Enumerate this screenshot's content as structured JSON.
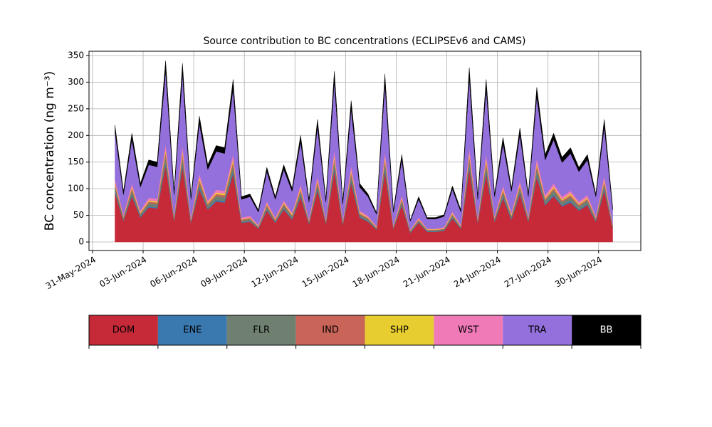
{
  "chart_data": {
    "type": "stacked_area",
    "title": "Source contribution to BC concentrations (ECLIPSEv6 and CAMS)",
    "ylabel": "BC concentration (ng m⁻³)",
    "x": [
      "2024-06-01T08:00",
      "2024-06-01T20:00",
      "2024-06-02T08:00",
      "2024-06-02T20:00",
      "2024-06-03T08:00",
      "2024-06-03T20:00",
      "2024-06-04T08:00",
      "2024-06-04T20:00",
      "2024-06-05T08:00",
      "2024-06-05T20:00",
      "2024-06-06T08:00",
      "2024-06-06T20:00",
      "2024-06-07T08:00",
      "2024-06-07T20:00",
      "2024-06-08T08:00",
      "2024-06-08T20:00",
      "2024-06-09T08:00",
      "2024-06-09T20:00",
      "2024-06-10T08:00",
      "2024-06-10T20:00",
      "2024-06-11T08:00",
      "2024-06-11T20:00",
      "2024-06-12T08:00",
      "2024-06-12T20:00",
      "2024-06-13T08:00",
      "2024-06-13T20:00",
      "2024-06-14T08:00",
      "2024-06-14T20:00",
      "2024-06-15T08:00",
      "2024-06-15T20:00",
      "2024-06-16T08:00",
      "2024-06-16T20:00",
      "2024-06-17T08:00",
      "2024-06-17T20:00",
      "2024-06-18T08:00",
      "2024-06-18T20:00",
      "2024-06-19T08:00",
      "2024-06-19T20:00",
      "2024-06-20T08:00",
      "2024-06-20T20:00",
      "2024-06-21T08:00",
      "2024-06-21T20:00",
      "2024-06-22T08:00",
      "2024-06-22T20:00",
      "2024-06-23T08:00",
      "2024-06-23T20:00",
      "2024-06-24T08:00",
      "2024-06-24T20:00",
      "2024-06-25T08:00",
      "2024-06-25T20:00",
      "2024-06-26T08:00",
      "2024-06-26T20:00",
      "2024-06-27T08:00",
      "2024-06-27T20:00",
      "2024-06-28T08:00",
      "2024-06-28T20:00",
      "2024-06-29T08:00",
      "2024-06-29T20:00",
      "2024-06-30T08:00",
      "2024-06-30T20:00"
    ],
    "series": [
      {
        "name": "DOM",
        "color": "#c62a38",
        "values": [
          92,
          40,
          86,
          46,
          65,
          63,
          143,
          40,
          141,
          36,
          99,
          61,
          76,
          74,
          128,
          36,
          38,
          25,
          59,
          36,
          61,
          42,
          84,
          34,
          97,
          34,
          134,
          32,
          111,
          46,
          38,
          23,
          132,
          25,
          69,
          17,
          36,
          19,
          19,
          21,
          44,
          25,
          137,
          36,
          128,
          38,
          82,
          42,
          90,
          38,
          122,
          69,
          86,
          67,
          74,
          59,
          69,
          38,
          97,
          27
        ]
      },
      {
        "name": "ENE",
        "color": "#3a78b0",
        "values": [
          3,
          1,
          3,
          2,
          2,
          2,
          5,
          1,
          5,
          1,
          4,
          2,
          3,
          3,
          5,
          1,
          1,
          1,
          2,
          1,
          2,
          2,
          3,
          1,
          3,
          1,
          5,
          1,
          4,
          2,
          1,
          1,
          5,
          1,
          2,
          1,
          1,
          1,
          1,
          1,
          2,
          1,
          5,
          1,
          5,
          1,
          3,
          2,
          3,
          1,
          4,
          2,
          3,
          2,
          3,
          2,
          2,
          1,
          3,
          1
        ]
      },
      {
        "name": "FLR",
        "color": "#6f8070",
        "values": [
          9,
          4,
          8,
          4,
          6,
          6,
          14,
          4,
          13,
          3,
          9,
          6,
          7,
          7,
          12,
          3,
          4,
          2,
          6,
          3,
          6,
          4,
          8,
          3,
          9,
          3,
          13,
          3,
          11,
          4,
          4,
          2,
          13,
          2,
          7,
          2,
          3,
          2,
          2,
          2,
          4,
          2,
          13,
          3,
          12,
          4,
          8,
          4,
          9,
          4,
          12,
          7,
          8,
          6,
          7,
          6,
          7,
          4,
          9,
          3
        ]
      },
      {
        "name": "IND",
        "color": "#c86458",
        "values": [
          4,
          2,
          4,
          2,
          3,
          3,
          7,
          2,
          7,
          2,
          5,
          3,
          4,
          4,
          6,
          2,
          2,
          1,
          3,
          2,
          3,
          2,
          4,
          2,
          5,
          2,
          6,
          2,
          5,
          2,
          2,
          1,
          6,
          1,
          3,
          1,
          2,
          1,
          1,
          1,
          2,
          1,
          7,
          2,
          6,
          2,
          4,
          2,
          4,
          2,
          6,
          3,
          4,
          3,
          4,
          3,
          3,
          2,
          5,
          1
        ]
      },
      {
        "name": "SHP",
        "color": "#e8cd30",
        "values": [
          3,
          1,
          3,
          2,
          2,
          2,
          5,
          1,
          5,
          1,
          4,
          2,
          3,
          3,
          5,
          1,
          1,
          1,
          2,
          1,
          2,
          2,
          3,
          1,
          3,
          1,
          5,
          1,
          4,
          2,
          1,
          1,
          5,
          1,
          2,
          1,
          1,
          1,
          1,
          1,
          2,
          1,
          5,
          1,
          5,
          1,
          3,
          2,
          3,
          1,
          4,
          2,
          3,
          2,
          3,
          2,
          2,
          1,
          3,
          1
        ]
      },
      {
        "name": "WST",
        "color": "#f07ab8",
        "values": [
          7,
          3,
          6,
          3,
          5,
          5,
          10,
          3,
          10,
          3,
          7,
          4,
          5,
          5,
          9,
          3,
          3,
          2,
          4,
          3,
          4,
          3,
          6,
          2,
          7,
          2,
          10,
          2,
          8,
          3,
          3,
          2,
          9,
          2,
          5,
          1,
          3,
          1,
          1,
          2,
          3,
          2,
          10,
          3,
          9,
          3,
          6,
          3,
          6,
          3,
          9,
          5,
          6,
          5,
          5,
          4,
          5,
          3,
          7,
          2
        ]
      },
      {
        "name": "TRA",
        "color": "#9370db",
        "values": [
          88,
          38,
          82,
          44,
          62,
          60,
          136,
          38,
          134,
          34,
          94,
          58,
          72,
          70,
          122,
          34,
          36,
          24,
          56,
          34,
          58,
          40,
          80,
          32,
          92,
          32,
          128,
          30,
          106,
          44,
          36,
          22,
          126,
          24,
          66,
          16,
          34,
          18,
          18,
          20,
          42,
          24,
          130,
          34,
          122,
          36,
          78,
          40,
          86,
          36,
          116,
          66,
          82,
          64,
          70,
          56,
          66,
          36,
          92,
          26
        ]
      },
      {
        "name": "BB",
        "color": "#000000",
        "values": [
          13,
          6,
          12,
          7,
          9,
          9,
          20,
          6,
          20,
          5,
          14,
          9,
          11,
          11,
          18,
          5,
          5,
          4,
          8,
          5,
          9,
          6,
          12,
          5,
          14,
          5,
          19,
          5,
          16,
          7,
          5,
          3,
          19,
          4,
          10,
          2,
          5,
          3,
          3,
          3,
          6,
          4,
          20,
          5,
          18,
          5,
          12,
          6,
          13,
          5,
          17,
          10,
          12,
          10,
          11,
          8,
          10,
          5,
          14,
          4
        ]
      }
    ],
    "xlim": [
      "2024-05-30T19:00",
      "2024-07-02T12:00"
    ],
    "xticks": [
      {
        "value": "2024-05-31T00:00",
        "label": "31-May-2024"
      },
      {
        "value": "2024-06-03T00:00",
        "label": "03-Jun-2024"
      },
      {
        "value": "2024-06-06T00:00",
        "label": "06-Jun-2024"
      },
      {
        "value": "2024-06-09T00:00",
        "label": "09-Jun-2024"
      },
      {
        "value": "2024-06-12T00:00",
        "label": "12-Jun-2024"
      },
      {
        "value": "2024-06-15T00:00",
        "label": "15-Jun-2024"
      },
      {
        "value": "2024-06-18T00:00",
        "label": "18-Jun-2024"
      },
      {
        "value": "2024-06-21T00:00",
        "label": "21-Jun-2024"
      },
      {
        "value": "2024-06-24T00:00",
        "label": "24-Jun-2024"
      },
      {
        "value": "2024-06-27T00:00",
        "label": "27-Jun-2024"
      },
      {
        "value": "2024-06-30T00:00",
        "label": "30-Jun-2024"
      }
    ],
    "ylim": [
      -16,
      358
    ],
    "yticks": [
      0,
      50,
      100,
      150,
      200,
      250,
      300,
      350
    ],
    "grid": true
  }
}
